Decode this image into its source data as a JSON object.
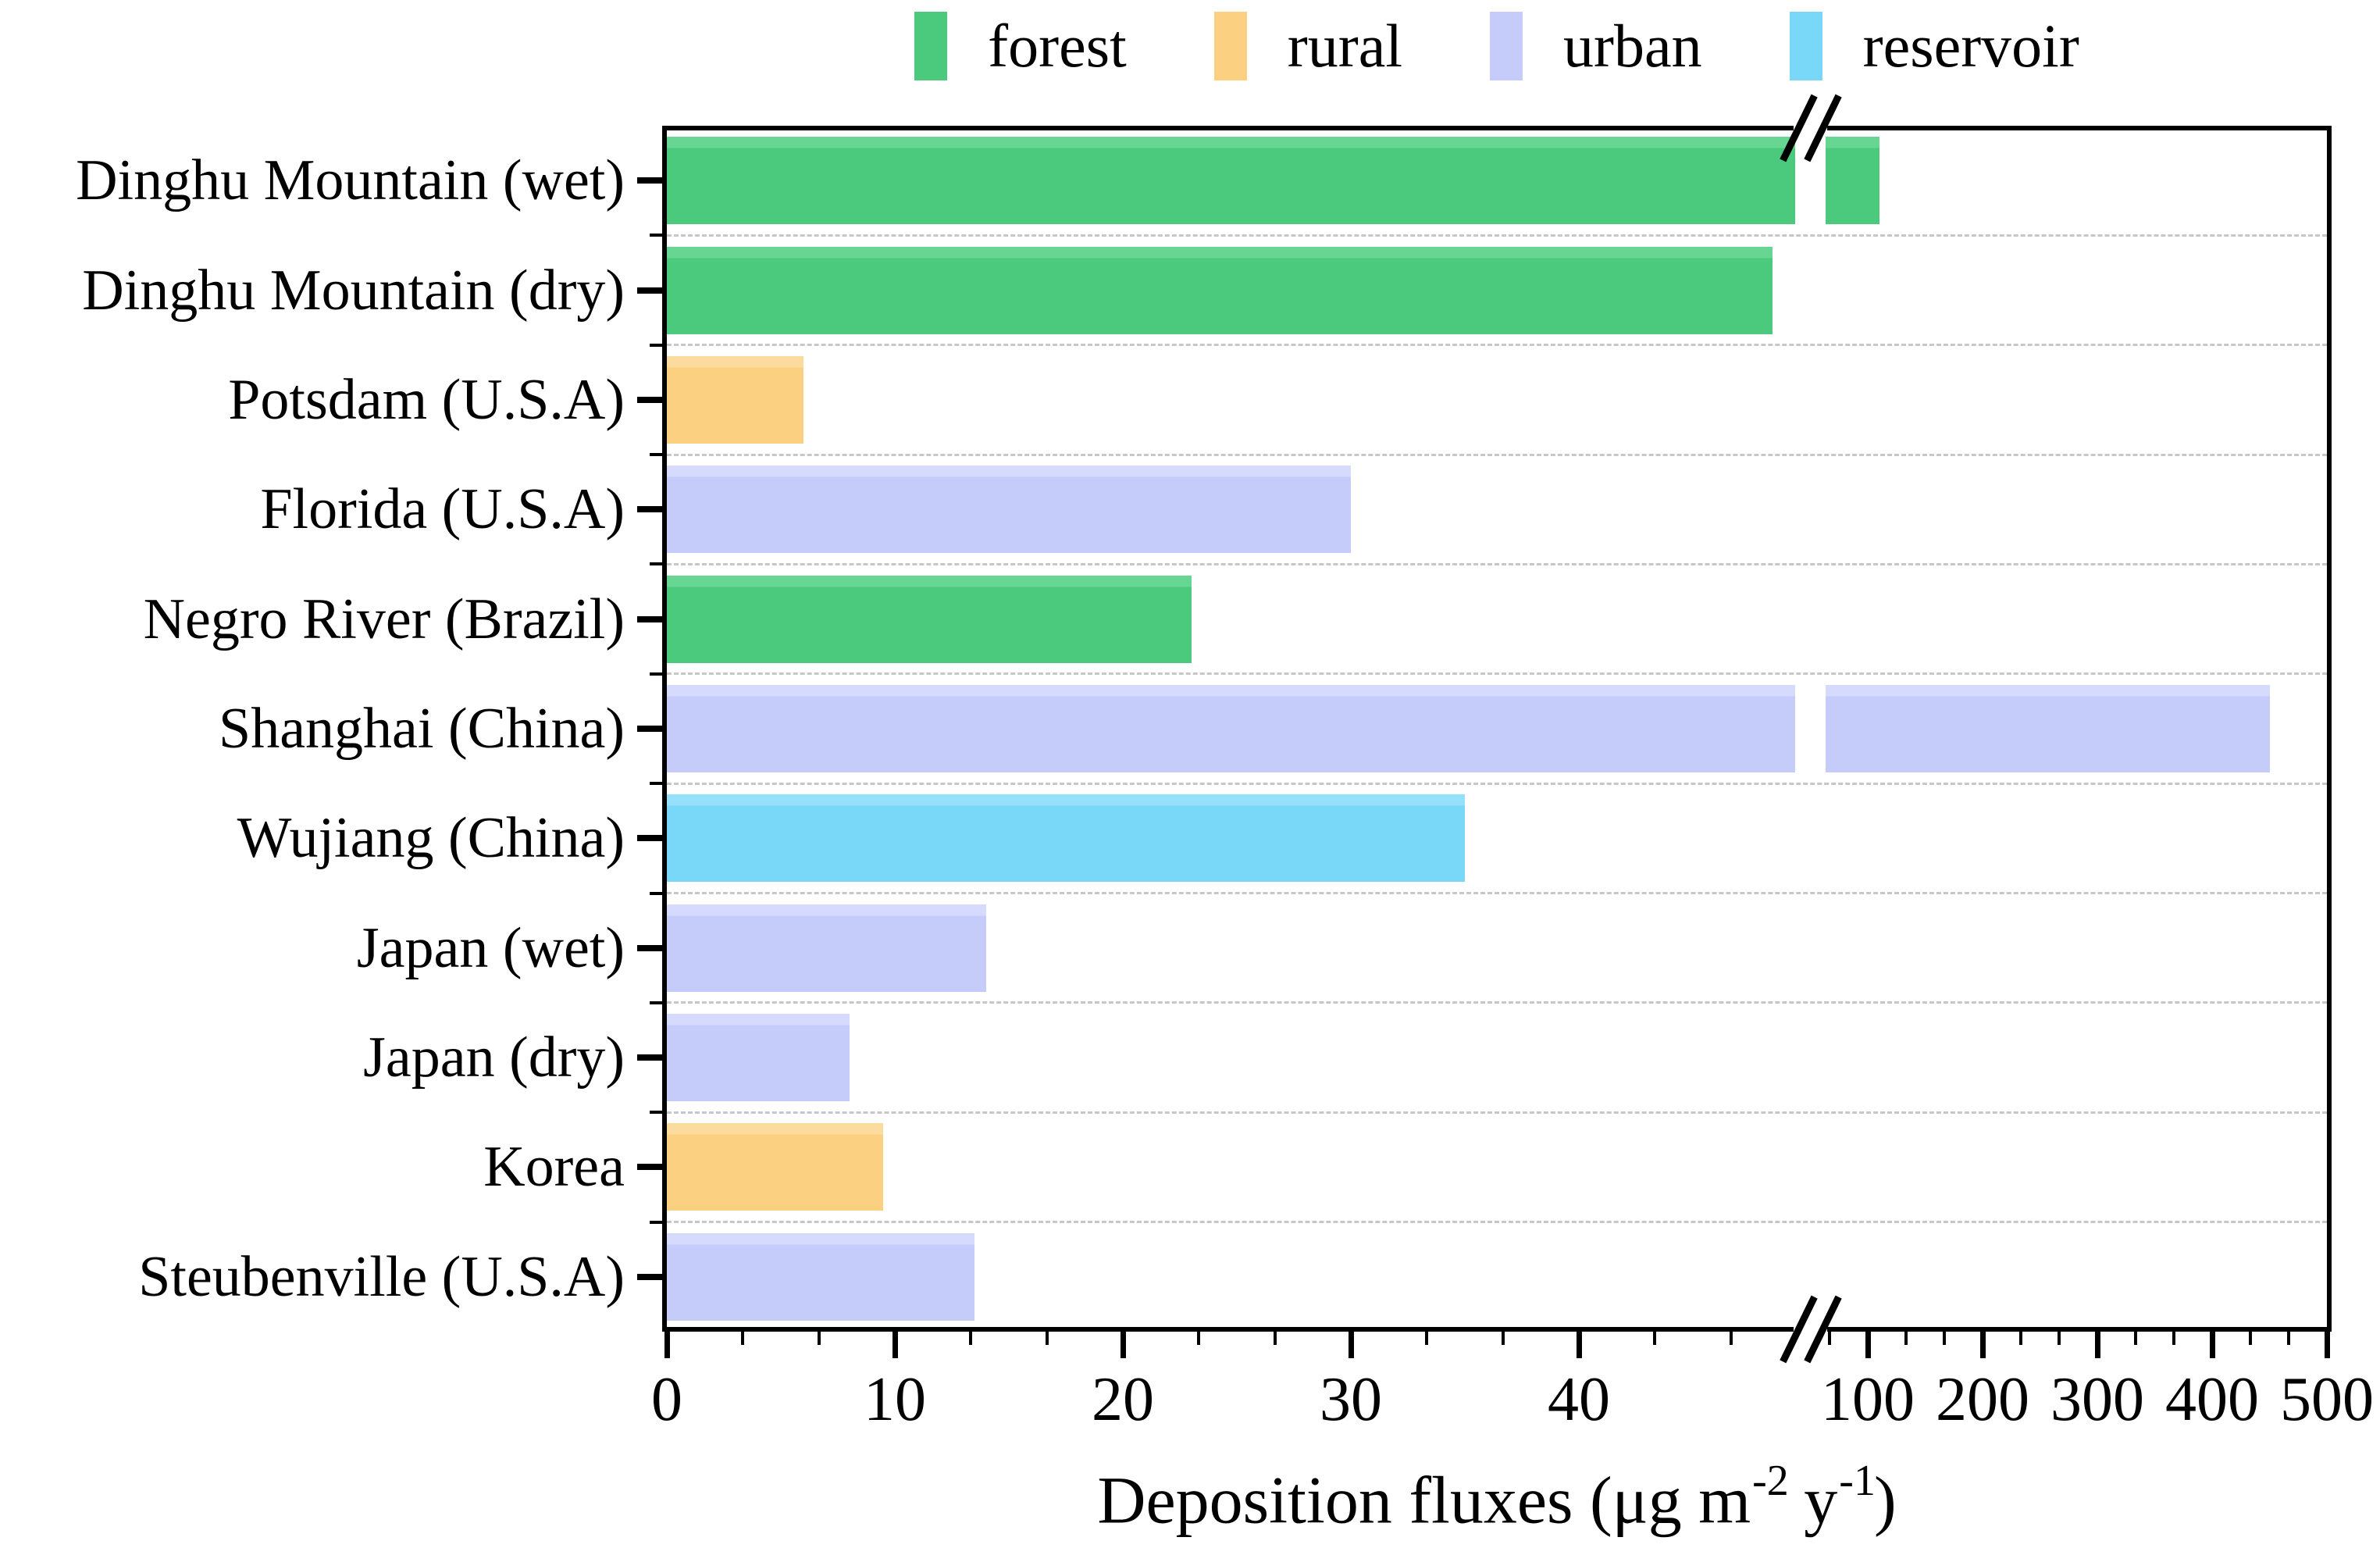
{
  "legend": {
    "items": [
      {
        "label": "forest",
        "key": "forest"
      },
      {
        "label": "rural",
        "key": "rural"
      },
      {
        "label": "urban",
        "key": "urban"
      },
      {
        "label": "reservoir",
        "key": "reservoir"
      }
    ]
  },
  "chart_data": {
    "type": "bar",
    "orientation": "horizontal",
    "title": "",
    "xlabel": "Deposition fluxes (μg m⁻² y⁻¹)",
    "xlabel_parts": {
      "pre": "Deposition fluxes (μg m",
      "sup1": "-2",
      "mid": " y",
      "sup2": "-1",
      "post": ")"
    },
    "ylabel": "",
    "categories": [
      "Dinghu Mountain (wet)",
      "Dinghu Mountain (dry)",
      "Potsdam (U.S.A)",
      "Florida (U.S.A)",
      "Negro River (Brazil)",
      "Shanghai (China)",
      "Wujiang (China)",
      "Japan (wet)",
      "Japan (dry)",
      "Korea",
      "Steubenville (U.S.A)"
    ],
    "values": [
      110,
      48.5,
      6,
      30,
      23,
      450,
      35,
      14,
      8,
      9.5,
      13.5
    ],
    "groups": [
      "forest",
      "forest",
      "rural",
      "urban",
      "forest",
      "urban",
      "reservoir",
      "urban",
      "urban",
      "rural",
      "urban"
    ],
    "group_colors": {
      "forest": "#4bc97c",
      "rural": "#fbd080",
      "urban": "#c6ccfa",
      "reservoir": "#79d7f8"
    },
    "group_colors_light": {
      "forest": "#67d693",
      "rural": "#fcdc9e",
      "urban": "#d6dafc",
      "reservoir": "#95e0fa"
    },
    "axis": {
      "grid_style": "dashed",
      "grid_color": "#c7c7c7",
      "axis_color": "#000000",
      "break": {
        "left_segment_max": 49.5,
        "right_segment_min": 63
      },
      "left_segment": {
        "range": [
          0,
          49.5
        ],
        "major_ticks": [
          0,
          10,
          20,
          30,
          40
        ],
        "minors_per_division": 2
      },
      "right_segment": {
        "range": [
          63,
          505
        ],
        "major_ticks": [
          100,
          200,
          300,
          400,
          500
        ],
        "minors_per_division": 2
      }
    },
    "legend_position": "top-center"
  }
}
